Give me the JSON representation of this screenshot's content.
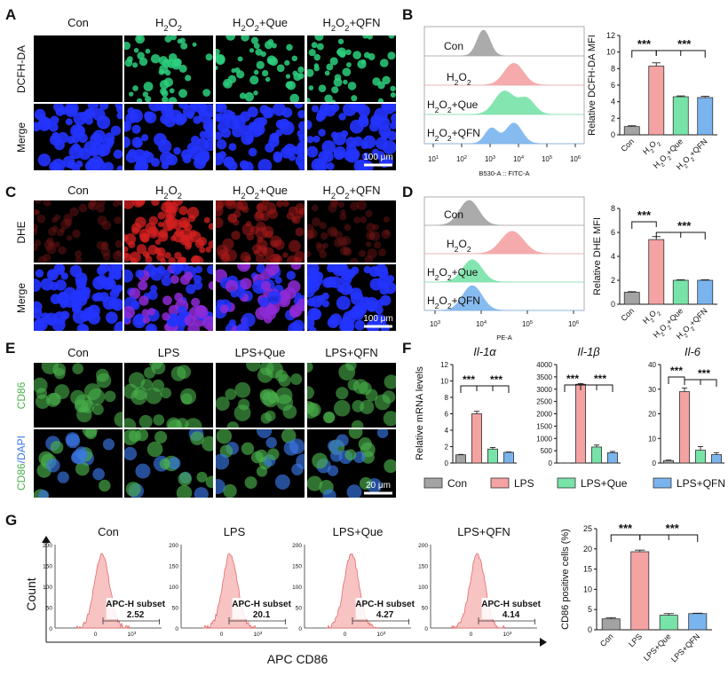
{
  "colors": {
    "con": "#a3a3a3",
    "h2o2": "#f4a2a2",
    "que": "#78e3a8",
    "qfn": "#7ab4ee",
    "green_cell": "#2ccf7d",
    "blue_cell": "#2434ff",
    "red_cell": "#d62020",
    "purple_cell": "#8e2ad6",
    "cd86": "#49b04b",
    "dapi": "#3a78e8"
  },
  "panel_letters": [
    "A",
    "B",
    "C",
    "D",
    "E",
    "F",
    "G"
  ],
  "panelA": {
    "col_labels": [
      {
        "t": "Con"
      },
      {
        "t": "H",
        "s": "2",
        "t2": "O",
        "s2": "2"
      },
      {
        "t": "H",
        "s": "2",
        "t2": "O",
        "s2": "2",
        "t3": "+Que"
      },
      {
        "t": "H",
        "s": "2",
        "t2": "O",
        "s2": "2",
        "t3": "+QFN"
      }
    ],
    "row_labels": [
      "DCFH-DA",
      "Merge"
    ],
    "scale": "100 μm"
  },
  "panelB": {
    "flow_labels": [
      "Con",
      "H2O2",
      "H2O2+Que",
      "H2O2+QFN"
    ],
    "flow_xlabel": "B530-A :: FITC-A",
    "flow_ticks": [
      "10",
      "10",
      "10",
      "10",
      "10",
      "10"
    ],
    "flow_tick_exp": [
      "1",
      "2",
      "3",
      "4",
      "5",
      "6"
    ]
  },
  "panelC": {
    "row_labels": [
      "DHE",
      "Merge"
    ],
    "scale": "100 μm"
  },
  "panelD": {
    "flow_xlabel": "PE-A",
    "flow_ticks": [
      "10",
      "10",
      "10",
      "10"
    ],
    "flow_tick_exp": [
      "3",
      "4",
      "5",
      "6"
    ]
  },
  "panelE": {
    "col_labels": [
      "Con",
      "LPS",
      "LPS+Que",
      "LPS+QFN"
    ],
    "row_label_cd86": "CD86",
    "row_label_merge_a": "CD86",
    "row_label_merge_b": "/DAPI",
    "scale": "20 μm"
  },
  "panelF": {
    "ylabel": "Relative mRNA levels",
    "legend": [
      "Con",
      "LPS",
      "LPS+Que",
      "LPS+QFN"
    ]
  },
  "panelG": {
    "hist_titles": [
      "Con",
      "LPS",
      "LPS+Que",
      "LPS+QFN"
    ],
    "subset_label": "APC-H subset",
    "subset_values": [
      "2.52",
      "20.1",
      "4.27",
      "4.14"
    ],
    "yaxis": "Count",
    "xaxis": "APC CD86",
    "y_ticks": [
      "200",
      "150",
      "100",
      "50",
      "0"
    ],
    "x_ticks": [
      "0",
      "10"
    ],
    "x_tick_exp": "3"
  },
  "sig": "***",
  "chart_data": [
    {
      "id": "B",
      "type": "bar",
      "title": "",
      "ylabel": "Relative DCFH-DA MFI",
      "categories": [
        "Con",
        "H2O2",
        "H2O2+Que",
        "H2O2+QFN"
      ],
      "values": [
        1.0,
        8.3,
        4.6,
        4.5
      ],
      "errors": [
        0.1,
        0.4,
        0.1,
        0.15
      ],
      "ylim": [
        0,
        12
      ],
      "yticks": [
        0,
        2,
        4,
        6,
        8,
        10,
        12
      ]
    },
    {
      "id": "D",
      "type": "bar",
      "title": "",
      "ylabel": "Relative DHE MFI",
      "categories": [
        "Con",
        "H2O2",
        "H2O2+Que",
        "H2O2+QFN"
      ],
      "values": [
        1.0,
        5.4,
        2.0,
        2.0
      ],
      "errors": [
        0.05,
        0.25,
        0.05,
        0.05
      ],
      "ylim": [
        0,
        8
      ],
      "yticks": [
        0,
        2,
        4,
        6,
        8
      ]
    },
    {
      "id": "F1",
      "type": "bar",
      "title": "Il-1α",
      "categories": [
        "Con",
        "LPS",
        "LPS+Que",
        "LPS+QFN"
      ],
      "values": [
        1.0,
        6.0,
        1.7,
        1.3
      ],
      "errors": [
        0.05,
        0.3,
        0.2,
        0.05
      ],
      "ylim": [
        0,
        12
      ],
      "yticks": [
        0,
        2,
        4,
        6,
        8,
        10,
        12
      ]
    },
    {
      "id": "F2",
      "type": "bar",
      "title": "Il-1β",
      "categories": [
        "Con",
        "LPS",
        "LPS+Que",
        "LPS+QFN"
      ],
      "values": [
        1.0,
        3200,
        650,
        420
      ],
      "errors": [
        0.5,
        30,
        80,
        50
      ],
      "ylim": [
        0,
        4000
      ],
      "yticks": [
        0,
        500,
        1000,
        1500,
        2000,
        2500,
        3000,
        3500,
        4000
      ]
    },
    {
      "id": "F3",
      "type": "bar",
      "title": "Il-6",
      "categories": [
        "Con",
        "LPS",
        "LPS+Que",
        "LPS+QFN"
      ],
      "values": [
        1.0,
        29,
        5.2,
        3.4
      ],
      "errors": [
        0.2,
        1.5,
        1.5,
        0.8
      ],
      "ylim": [
        0,
        40
      ],
      "yticks": [
        0,
        10,
        20,
        30,
        40
      ]
    },
    {
      "id": "G",
      "type": "bar",
      "title": "",
      "ylabel": "CD86 positive cells (%)",
      "categories": [
        "Con",
        "LPS",
        "LPS+Que",
        "LPS+QFN"
      ],
      "values": [
        2.7,
        19.3,
        3.6,
        4.0
      ],
      "errors": [
        0.3,
        0.4,
        0.4,
        0.1
      ],
      "ylim": [
        0,
        25
      ],
      "yticks": [
        0,
        5,
        10,
        15,
        20,
        25
      ]
    }
  ]
}
